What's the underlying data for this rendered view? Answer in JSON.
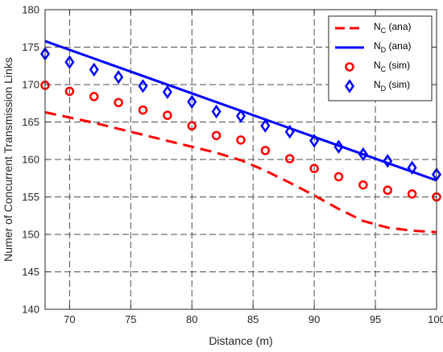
{
  "chart_data": {
    "type": "line",
    "xlabel": "Distance (m)",
    "ylabel": "Numer of Concurrent Transmission Links",
    "xlim": [
      68,
      100
    ],
    "ylim": [
      140,
      180
    ],
    "xticks": [
      70,
      75,
      80,
      85,
      90,
      95,
      100
    ],
    "yticks": [
      140,
      145,
      150,
      155,
      160,
      165,
      170,
      175,
      180
    ],
    "grid": true,
    "legend_position": "top-right",
    "colors": {
      "red": "#ff0000",
      "blue": "#0000ff"
    },
    "series": [
      {
        "name": "N_C (ana)",
        "legend_main": "N",
        "legend_sub": "C",
        "legend_suffix": " (ana)",
        "style": "dashed-line",
        "color": "#ff0000",
        "x": [
          68,
          70,
          72,
          74,
          76,
          78,
          80,
          82,
          84,
          86,
          88,
          90,
          92,
          94,
          96,
          98,
          100
        ],
        "y": [
          166.3,
          165.6,
          164.9,
          164.1,
          163.3,
          162.5,
          161.7,
          160.9,
          159.9,
          158.5,
          156.9,
          155.2,
          153.4,
          151.8,
          150.9,
          150.5,
          150.3
        ]
      },
      {
        "name": "N_D (ana)",
        "legend_main": "N",
        "legend_sub": "D",
        "legend_suffix": " (ana)",
        "style": "solid-line",
        "color": "#0000ff",
        "x": [
          68,
          100
        ],
        "y": [
          175.8,
          157.2
        ]
      },
      {
        "name": "N_C (sim)",
        "legend_main": "N",
        "legend_sub": "C",
        "legend_suffix": " (sim)",
        "style": "circle-marker",
        "color": "#ff0000",
        "x": [
          68,
          70,
          72,
          74,
          76,
          78,
          80,
          82,
          84,
          86,
          88,
          90,
          92,
          94,
          96,
          98,
          100
        ],
        "y": [
          169.9,
          169.1,
          168.4,
          167.6,
          166.6,
          165.9,
          164.5,
          163.2,
          162.6,
          161.2,
          160.1,
          158.8,
          157.7,
          156.6,
          155.9,
          155.4,
          155.0
        ]
      },
      {
        "name": "N_D (sim)",
        "legend_main": "N",
        "legend_sub": "D",
        "legend_suffix": " (sim)",
        "style": "diamond-marker",
        "color": "#0000ff",
        "x": [
          68,
          70,
          72,
          74,
          76,
          78,
          80,
          82,
          84,
          86,
          88,
          90,
          92,
          94,
          96,
          98,
          100
        ],
        "y": [
          174.1,
          173.0,
          172.0,
          171.0,
          169.8,
          169.0,
          167.7,
          166.4,
          165.8,
          164.5,
          163.7,
          162.5,
          161.7,
          160.7,
          159.8,
          158.9,
          158.0
        ]
      }
    ]
  }
}
